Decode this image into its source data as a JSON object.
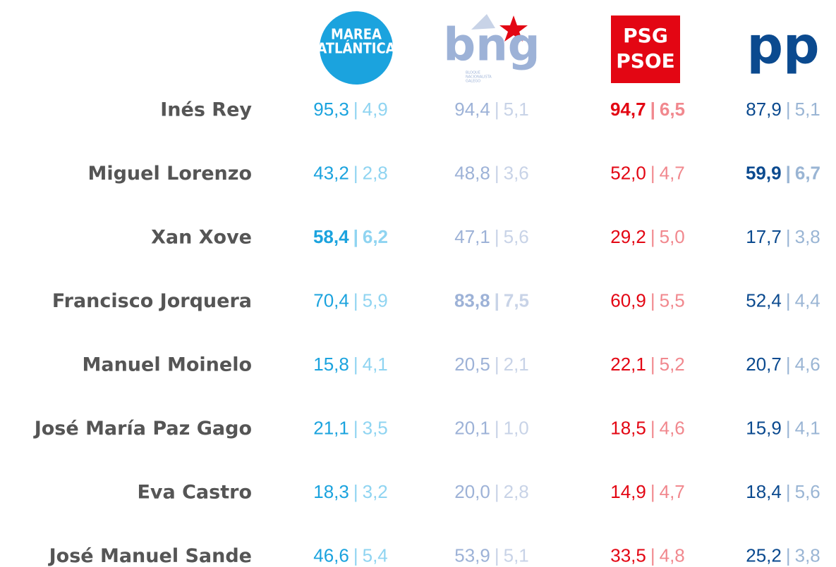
{
  "parties": [
    {
      "logo_lines": [
        "MAREA",
        "ATLÁNTICA"
      ],
      "color": "#1ba3de",
      "light": "#8fd4f1"
    },
    {
      "logo_lines": [
        "bng"
      ],
      "sub_lines": [
        "BLOQUE",
        "NACIONALISTA",
        "GALEGO"
      ],
      "color": "#9db2d7",
      "light": "#c8d3e7"
    },
    {
      "logo_lines": [
        "PSG",
        "PSOE"
      ],
      "color": "#e30613",
      "light": "#f1888e"
    },
    {
      "logo_lines": [
        "pp"
      ],
      "color": "#0b4a8f",
      "light": "#9ab5d4"
    }
  ],
  "separator": "|",
  "rows": [
    {
      "name": "Inés Rey",
      "cells": [
        {
          "a": "95,3",
          "b": "4,9"
        },
        {
          "a": "94,4",
          "b": "5,1"
        },
        {
          "a": "94,7",
          "b": "6,5",
          "bold": true
        },
        {
          "a": "87,9",
          "b": "5,1"
        }
      ]
    },
    {
      "name": "Miguel Lorenzo",
      "cells": [
        {
          "a": "43,2",
          "b": "2,8"
        },
        {
          "a": "48,8",
          "b": "3,6"
        },
        {
          "a": "52,0",
          "b": "4,7"
        },
        {
          "a": "59,9",
          "b": "6,7",
          "bold": true
        }
      ]
    },
    {
      "name": "Xan Xove",
      "cells": [
        {
          "a": "58,4",
          "b": "6,2",
          "bold": true
        },
        {
          "a": "47,1",
          "b": "5,6"
        },
        {
          "a": "29,2",
          "b": "5,0"
        },
        {
          "a": "17,7",
          "b": "3,8"
        }
      ]
    },
    {
      "name": "Francisco Jorquera",
      "cells": [
        {
          "a": "70,4",
          "b": "5,9"
        },
        {
          "a": "83,8",
          "b": "7,5",
          "bold": true
        },
        {
          "a": "60,9",
          "b": "5,5"
        },
        {
          "a": "52,4",
          "b": "4,4"
        }
      ]
    },
    {
      "name": "Manuel Moinelo",
      "cells": [
        {
          "a": "15,8",
          "b": "4,1"
        },
        {
          "a": "20,5",
          "b": "2,1"
        },
        {
          "a": "22,1",
          "b": "5,2"
        },
        {
          "a": "20,7",
          "b": "4,6"
        }
      ]
    },
    {
      "name": "José María Paz Gago",
      "cells": [
        {
          "a": "21,1",
          "b": "3,5"
        },
        {
          "a": "20,1",
          "b": "1,0"
        },
        {
          "a": "18,5",
          "b": "4,6"
        },
        {
          "a": "15,9",
          "b": "4,1"
        }
      ]
    },
    {
      "name": "Eva Castro",
      "cells": [
        {
          "a": "18,3",
          "b": "3,2"
        },
        {
          "a": "20,0",
          "b": "2,8"
        },
        {
          "a": "14,9",
          "b": "4,7"
        },
        {
          "a": "18,4",
          "b": "5,6"
        }
      ]
    },
    {
      "name": "José Manuel Sande",
      "cells": [
        {
          "a": "46,6",
          "b": "5,4"
        },
        {
          "a": "53,9",
          "b": "5,1"
        },
        {
          "a": "33,5",
          "b": "4,8"
        },
        {
          "a": "25,2",
          "b": "3,8"
        }
      ]
    }
  ]
}
